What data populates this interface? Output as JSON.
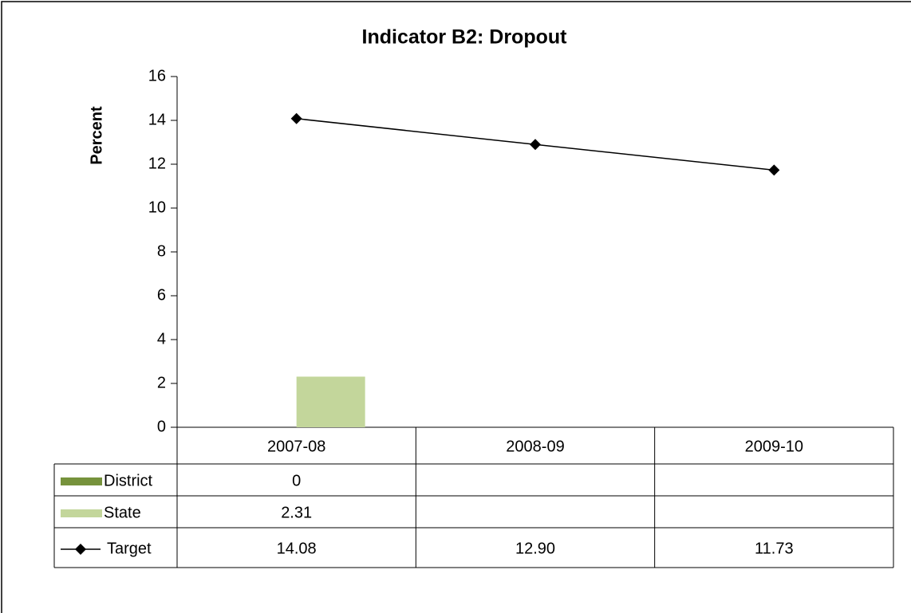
{
  "chart_data": {
    "type": "bar-line-table",
    "title": "Indicator B2: Dropout",
    "y_label": "Percent",
    "categories": [
      "2007-08",
      "2008-09",
      "2009-10"
    ],
    "series": [
      {
        "name": "District",
        "type": "bar",
        "color": "#76923c",
        "values": [
          0,
          null,
          null
        ]
      },
      {
        "name": "State",
        "type": "bar",
        "color": "#c3d69b",
        "values": [
          2.31,
          null,
          null
        ]
      },
      {
        "name": "Target",
        "type": "line",
        "color": "#000000",
        "values": [
          14.08,
          12.9,
          11.73
        ],
        "value_labels": [
          "14.08",
          "12.90",
          "11.73"
        ]
      }
    ],
    "ylim": [
      0,
      16
    ],
    "yticks": [
      0,
      2,
      4,
      6,
      8,
      10,
      12,
      14,
      16
    ]
  }
}
